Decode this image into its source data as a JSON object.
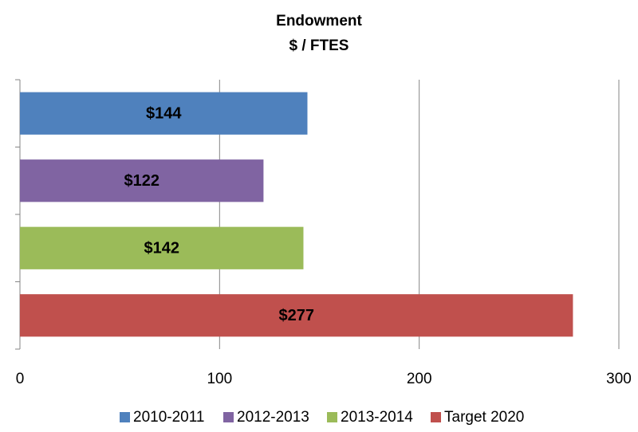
{
  "chart_data": {
    "type": "bar",
    "orientation": "horizontal",
    "title": "Endowment",
    "subtitle": "$ / FTES",
    "categories": [
      null
    ],
    "series": [
      {
        "name": "2010-2011",
        "color": "#4f81bd",
        "values": [
          144
        ],
        "value_labels": [
          "$144"
        ]
      },
      {
        "name": "2012-2013",
        "color": "#8064a2",
        "values": [
          122
        ],
        "value_labels": [
          "$122"
        ]
      },
      {
        "name": "2013-2014",
        "color": "#9bbb59",
        "values": [
          142
        ],
        "value_labels": [
          "$142"
        ]
      },
      {
        "name": "Target 2020",
        "color": "#c0504d",
        "values": [
          277
        ],
        "value_labels": [
          "$277"
        ]
      }
    ],
    "xlim": [
      0,
      300
    ],
    "xticks": [
      0,
      100,
      200,
      300
    ],
    "grid": true,
    "legend": "bottom"
  }
}
